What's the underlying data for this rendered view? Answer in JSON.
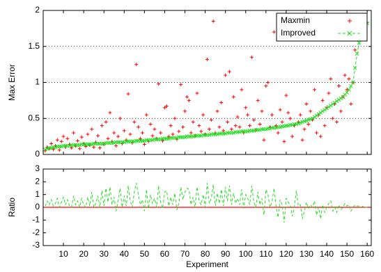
{
  "chart_data": [
    {
      "type": "scatter",
      "ylabel": "Max Error",
      "xlim": [
        0,
        162
      ],
      "ylim": [
        0,
        2
      ],
      "xticks": [
        10,
        20,
        30,
        40,
        50,
        60,
        70,
        80,
        90,
        100,
        110,
        120,
        130,
        140,
        150,
        160
      ],
      "yticks": [
        0,
        0.5,
        1,
        1.5,
        2
      ],
      "grid": true,
      "legend": "upper right",
      "x": [
        1,
        2,
        3,
        4,
        5,
        6,
        7,
        8,
        9,
        10,
        11,
        12,
        13,
        14,
        15,
        16,
        17,
        18,
        19,
        20,
        21,
        22,
        23,
        24,
        25,
        26,
        27,
        28,
        29,
        30,
        31,
        32,
        33,
        34,
        35,
        36,
        37,
        38,
        39,
        40,
        41,
        42,
        43,
        44,
        45,
        46,
        47,
        48,
        49,
        50,
        51,
        52,
        53,
        54,
        55,
        56,
        57,
        58,
        59,
        60,
        61,
        62,
        63,
        64,
        65,
        66,
        67,
        68,
        69,
        70,
        71,
        72,
        73,
        74,
        75,
        76,
        77,
        78,
        79,
        80,
        81,
        82,
        83,
        84,
        85,
        86,
        87,
        88,
        89,
        90,
        91,
        92,
        93,
        94,
        95,
        96,
        97,
        98,
        99,
        100,
        101,
        102,
        103,
        104,
        105,
        106,
        107,
        108,
        109,
        110,
        111,
        112,
        113,
        114,
        115,
        116,
        117,
        118,
        119,
        120,
        121,
        122,
        123,
        124,
        125,
        126,
        127,
        128,
        129,
        130,
        131,
        132,
        133,
        134,
        135,
        136,
        137,
        138,
        139,
        140,
        141,
        142,
        143,
        144,
        145,
        146,
        147,
        148,
        149,
        150,
        151,
        152,
        153,
        154,
        155,
        156,
        157,
        158,
        159,
        160
      ],
      "series": [
        {
          "name": "Maxmin",
          "color": "#ff0000",
          "marker": "+",
          "values": [
            0.05,
            0.1,
            0.08,
            0.15,
            0.07,
            0.12,
            0.2,
            0.06,
            0.18,
            0.25,
            0.1,
            0.22,
            0.14,
            0.09,
            0.3,
            0.12,
            0.19,
            0.08,
            0.24,
            0.15,
            0.11,
            0.28,
            0.13,
            0.35,
            0.1,
            0.17,
            0.26,
            0.09,
            0.4,
            0.14,
            0.45,
            0.22,
            0.58,
            0.18,
            0.3,
            0.12,
            0.25,
            0.5,
            0.15,
            0.33,
            0.2,
            0.84,
            0.28,
            0.16,
            0.45,
            1.25,
            0.38,
            0.22,
            0.3,
            0.14,
            0.55,
            0.18,
            0.42,
            0.26,
            0.35,
            0.22,
            0.98,
            0.3,
            0.19,
            0.65,
            0.67,
            0.25,
            0.4,
            0.28,
            0.5,
            0.21,
            0.32,
            0.97,
            0.38,
            0.6,
            0.8,
            0.75,
            0.3,
            0.45,
            0.26,
            0.85,
            0.4,
            0.32,
            0.55,
            0.28,
            1.32,
            0.35,
            0.48,
            1.85,
            0.3,
            0.6,
            0.38,
            0.72,
            0.33,
            1.1,
            0.45,
            1.15,
            0.35,
            0.8,
            0.4,
            0.52,
            0.38,
            0.9,
            0.3,
            0.65,
            0.55,
            0.4,
            1.35,
            0.48,
            0.34,
            0.75,
            0.42,
            0.6,
            0.2,
            0.95,
            1.0,
            0.38,
            0.55,
            1.7,
            0.4,
            0.3,
            0.62,
            0.45,
            0.18,
            0.82,
            0.58,
            0.5,
            0.25,
            0.4,
            1.6,
            0.45,
            0.55,
            0.2,
            0.35,
            0.7,
            0.42,
            0.6,
            0.48,
            0.9,
            0.3,
            0.55,
            0.25,
            0.75,
            0.4,
            0.65,
            0.85,
            1.05,
            0.5,
            0.7,
            0.45,
            0.95,
            0.6,
            0.8,
            1.1,
            0.9,
            1.05,
            0.7,
            1.0,
            1.45,
            1.6,
            1.75,
            1.65,
            1.8,
            1.78,
            1.83
          ]
        },
        {
          "name": "Improved",
          "color": "#22dd22",
          "marker": "x",
          "dashed": true,
          "values": [
            0.07,
            0.08,
            0.09,
            0.09,
            0.1,
            0.1,
            0.11,
            0.11,
            0.11,
            0.12,
            0.12,
            0.12,
            0.12,
            0.13,
            0.13,
            0.13,
            0.13,
            0.13,
            0.14,
            0.14,
            0.14,
            0.14,
            0.14,
            0.14,
            0.15,
            0.15,
            0.15,
            0.15,
            0.15,
            0.15,
            0.16,
            0.16,
            0.16,
            0.16,
            0.16,
            0.17,
            0.17,
            0.17,
            0.17,
            0.17,
            0.18,
            0.18,
            0.18,
            0.18,
            0.18,
            0.19,
            0.19,
            0.19,
            0.19,
            0.19,
            0.2,
            0.2,
            0.2,
            0.2,
            0.21,
            0.21,
            0.21,
            0.21,
            0.22,
            0.22,
            0.22,
            0.22,
            0.23,
            0.23,
            0.23,
            0.23,
            0.24,
            0.24,
            0.24,
            0.24,
            0.25,
            0.25,
            0.25,
            0.25,
            0.26,
            0.26,
            0.26,
            0.26,
            0.27,
            0.27,
            0.27,
            0.27,
            0.28,
            0.28,
            0.28,
            0.28,
            0.29,
            0.29,
            0.29,
            0.29,
            0.3,
            0.3,
            0.3,
            0.3,
            0.31,
            0.31,
            0.31,
            0.32,
            0.32,
            0.32,
            0.32,
            0.33,
            0.33,
            0.33,
            0.34,
            0.34,
            0.34,
            0.35,
            0.35,
            0.35,
            0.36,
            0.36,
            0.37,
            0.37,
            0.37,
            0.38,
            0.38,
            0.39,
            0.39,
            0.4,
            0.4,
            0.41,
            0.41,
            0.42,
            0.42,
            0.43,
            0.44,
            0.45,
            0.46,
            0.47,
            0.48,
            0.49,
            0.5,
            0.52,
            0.54,
            0.56,
            0.58,
            0.6,
            0.62,
            0.64,
            0.66,
            0.68,
            0.7,
            0.72,
            0.74,
            0.76,
            0.78,
            0.8,
            0.83,
            0.86,
            0.9,
            0.95,
            1.0,
            1.2,
            1.4,
            1.55,
            1.65,
            1.72,
            1.78,
            1.82
          ]
        }
      ]
    },
    {
      "type": "line",
      "ylabel": "Ratio",
      "xlabel": "Experiment",
      "xlim": [
        0,
        162
      ],
      "ylim": [
        -3,
        3
      ],
      "xticks": [
        10,
        20,
        30,
        40,
        50,
        60,
        70,
        80,
        90,
        100,
        110,
        120,
        130,
        140,
        150,
        160
      ],
      "yticks": [
        -3,
        -2,
        -1,
        0,
        1,
        2,
        3
      ],
      "grid": false,
      "hline": 0,
      "hline_color": "#ff0000",
      "x": [
        1,
        2,
        3,
        4,
        5,
        6,
        7,
        8,
        9,
        10,
        11,
        12,
        13,
        14,
        15,
        16,
        17,
        18,
        19,
        20,
        21,
        22,
        23,
        24,
        25,
        26,
        27,
        28,
        29,
        30,
        31,
        32,
        33,
        34,
        35,
        36,
        37,
        38,
        39,
        40,
        41,
        42,
        43,
        44,
        45,
        46,
        47,
        48,
        49,
        50,
        51,
        52,
        53,
        54,
        55,
        56,
        57,
        58,
        59,
        60,
        61,
        62,
        63,
        64,
        65,
        66,
        67,
        68,
        69,
        70,
        71,
        72,
        73,
        74,
        75,
        76,
        77,
        78,
        79,
        80,
        81,
        82,
        83,
        84,
        85,
        86,
        87,
        88,
        89,
        90,
        91,
        92,
        93,
        94,
        95,
        96,
        97,
        98,
        99,
        100,
        101,
        102,
        103,
        104,
        105,
        106,
        107,
        108,
        109,
        110,
        111,
        112,
        113,
        114,
        115,
        116,
        117,
        118,
        119,
        120,
        121,
        122,
        123,
        124,
        125,
        126,
        127,
        128,
        129,
        130,
        131,
        132,
        133,
        134,
        135,
        136,
        137,
        138,
        139,
        140,
        141,
        142,
        143,
        144,
        145,
        146,
        147,
        148,
        149,
        150,
        151,
        152,
        153,
        154,
        155,
        156,
        157,
        158,
        159,
        160
      ],
      "series": [
        {
          "color": "#22dd22",
          "dashed": true,
          "values": [
            0.1,
            0.5,
            0.2,
            0.6,
            0.1,
            0.3,
            0.7,
            0.0,
            0.4,
            0.8,
            0.2,
            0.6,
            0.1,
            0.0,
            0.9,
            0.2,
            0.5,
            0.0,
            0.7,
            0.2,
            0.0,
            0.8,
            0.1,
            1.2,
            0.0,
            0.3,
            0.9,
            0.0,
            1.3,
            0.1,
            1.5,
            0.4,
            1.6,
            0.2,
            0.8,
            -0.3,
            0.5,
            1.5,
            0.0,
            0.9,
            0.1,
            1.7,
            0.5,
            0.0,
            1.2,
            1.9,
            1.0,
            0.2,
            0.6,
            -0.3,
            1.4,
            -0.1,
            1.0,
            0.3,
            0.7,
            0.0,
            1.7,
            0.4,
            -0.1,
            1.2,
            1.3,
            0.1,
            0.8,
            0.2,
            1.1,
            -0.2,
            0.3,
            1.6,
            0.6,
            1.2,
            1.5,
            1.4,
            0.2,
            0.8,
            0.0,
            1.6,
            0.5,
            0.2,
            1.0,
            0.0,
            1.9,
            0.3,
            0.7,
            1.8,
            0.1,
            1.1,
            0.3,
            1.4,
            0.1,
            1.6,
            0.5,
            1.7,
            0.2,
            1.1,
            0.3,
            0.7,
            0.2,
            1.4,
            -0.1,
            1.0,
            0.7,
            0.2,
            1.7,
            0.4,
            0.0,
            1.2,
            0.2,
            0.7,
            -0.6,
            1.4,
            1.0,
            0.0,
            0.4,
            1.5,
            0.1,
            -0.8,
            0.6,
            0.2,
            -1.2,
            0.7,
            0.4,
            0.2,
            -0.7,
            0.0,
            1.3,
            0.1,
            0.2,
            -0.9,
            -0.3,
            0.4,
            -0.1,
            0.2,
            0.0,
            0.5,
            -0.6,
            0.0,
            -0.9,
            0.2,
            -0.4,
            0.0,
            0.3,
            0.5,
            -0.3,
            0.0,
            -0.4,
            0.2,
            -0.2,
            0.0,
            0.3,
            0.1,
            0.2,
            -0.3,
            0.0,
            0.2,
            0.1,
            0.1,
            0.0,
            0.1,
            0.0,
            0.0
          ]
        }
      ]
    }
  ]
}
